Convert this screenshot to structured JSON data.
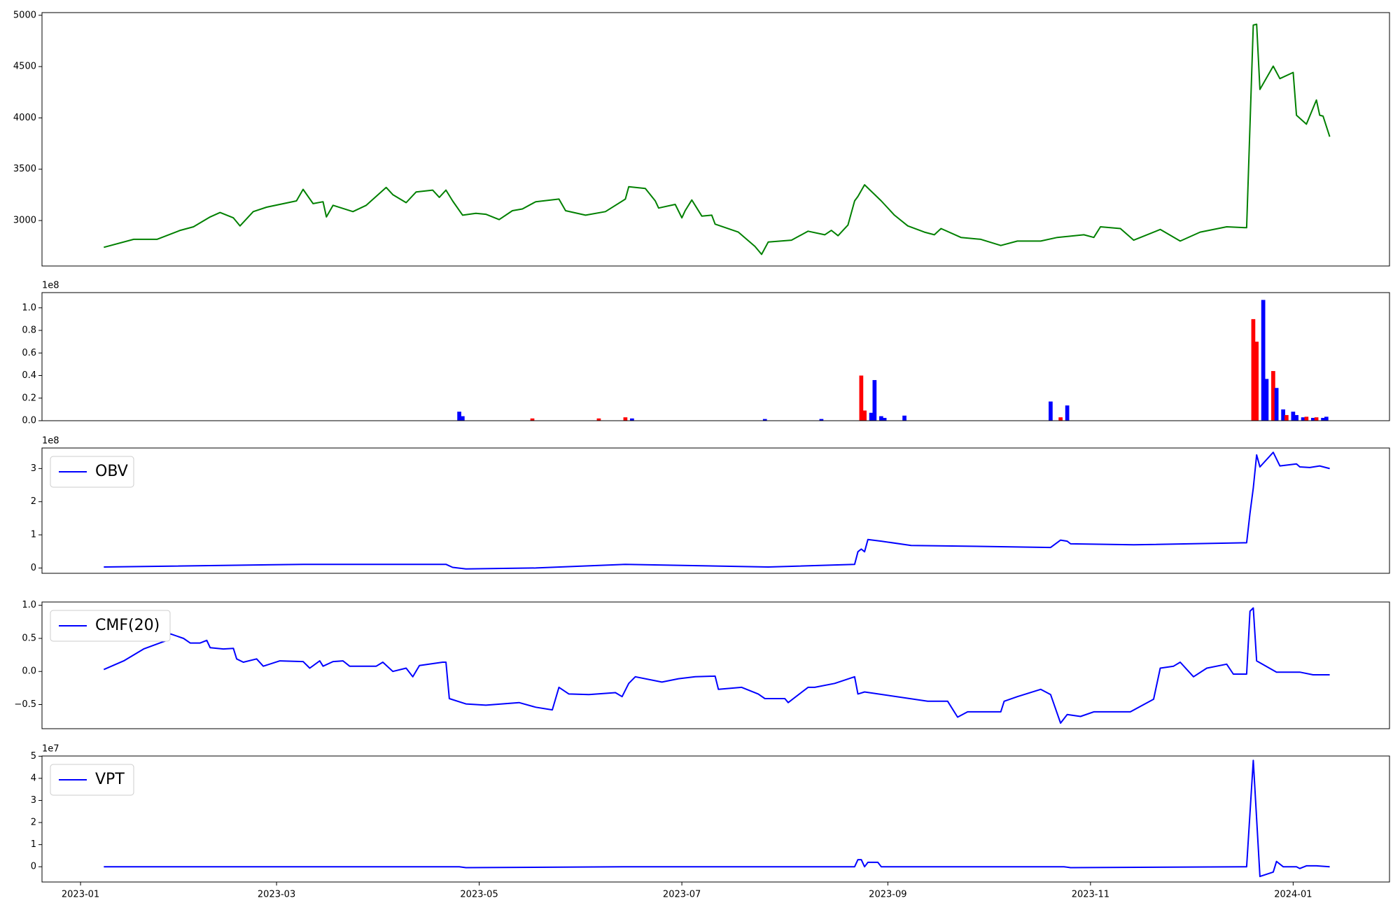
{
  "chart_data": [
    {
      "type": "line",
      "color": "#008000",
      "x": [
        7,
        16,
        23,
        30,
        34,
        39,
        42,
        46,
        48,
        52,
        56,
        65,
        67,
        70,
        73,
        74,
        76,
        82,
        86,
        92,
        94,
        98,
        101,
        106,
        108,
        110,
        112,
        115,
        119,
        122,
        126,
        130,
        133,
        137,
        144,
        146,
        152,
        158,
        164,
        165,
        170,
        173,
        174,
        179,
        181,
        182,
        184,
        187,
        190,
        191,
        198,
        203,
        205,
        207,
        214,
        219,
        224,
        226,
        228,
        231,
        233,
        234,
        236,
        241,
        245,
        249,
        254,
        257,
        259,
        265,
        271,
        277,
        282,
        289,
        294,
        302,
        305,
        307,
        313,
        317,
        325,
        331,
        337,
        345,
        351,
        353,
        354,
        355,
        359,
        361,
        365,
        366,
        369,
        372,
        373,
        374,
        376
      ],
      "values": [
        2739,
        2817,
        2817,
        2904,
        2939,
        3035,
        3078,
        3026,
        2948,
        3087,
        3130,
        3191,
        3304,
        3165,
        3183,
        3035,
        3148,
        3087,
        3148,
        3322,
        3252,
        3174,
        3278,
        3296,
        3226,
        3296,
        3191,
        3052,
        3070,
        3061,
        3009,
        3096,
        3113,
        3183,
        3209,
        3096,
        3052,
        3087,
        3209,
        3330,
        3313,
        3191,
        3122,
        3157,
        3026,
        3096,
        3200,
        3043,
        3052,
        2965,
        2887,
        2748,
        2670,
        2791,
        2809,
        2896,
        2861,
        2904,
        2852,
        2957,
        3191,
        3235,
        3348,
        3191,
        3052,
        2948,
        2887,
        2861,
        2922,
        2835,
        2817,
        2757,
        2800,
        2800,
        2835,
        2861,
        2835,
        2939,
        2922,
        2809,
        2913,
        2800,
        2887,
        2939,
        2930,
        4904,
        4913,
        4278,
        4504,
        4383,
        4443,
        4026,
        3939,
        4174,
        4026,
        4017,
        3817
      ],
      "xlim": [
        -11.6,
        394
      ],
      "ylim": [
        2557,
        5026
      ],
      "yticks": [
        3000,
        3500,
        4000,
        4500,
        5000
      ]
    },
    {
      "type": "bar",
      "y_offset_label": "1e8",
      "x": [
        114,
        115,
        136,
        156,
        164,
        166,
        206,
        223,
        235,
        236,
        238,
        239,
        241,
        242,
        248,
        292,
        295,
        297,
        353,
        354,
        356,
        357,
        359,
        360,
        362,
        363,
        365,
        366,
        368,
        369,
        371,
        372,
        374,
        375
      ],
      "values": [
        8000000,
        4000000,
        2000000,
        2000000,
        3000000,
        2000000,
        1500000,
        1500000,
        40000000,
        9000000,
        7000000,
        36000000,
        4000000,
        2500000,
        4500000,
        17000000,
        3000000,
        13500000,
        90000000,
        70000000,
        107000000,
        37000000,
        44000000,
        29000000,
        10000000,
        5000000,
        8000000,
        5000000,
        3000000,
        3500000,
        2500000,
        3000000,
        2500000,
        3500000
      ],
      "colors": [
        "#0000ff",
        "#0000ff",
        "#ff0000",
        "#ff0000",
        "#ff0000",
        "#0000ff",
        "#0000ff",
        "#0000ff",
        "#ff0000",
        "#ff0000",
        "#0000ff",
        "#0000ff",
        "#0000ff",
        "#0000ff",
        "#0000ff",
        "#0000ff",
        "#ff0000",
        "#0000ff",
        "#ff0000",
        "#ff0000",
        "#0000ff",
        "#0000ff",
        "#ff0000",
        "#0000ff",
        "#0000ff",
        "#ff0000",
        "#0000ff",
        "#0000ff",
        "#0000ff",
        "#ff0000",
        "#0000ff",
        "#ff0000",
        "#0000ff",
        "#0000ff"
      ],
      "bar_width": 1.2,
      "xlim": [
        -11.6,
        394
      ],
      "ylim": [
        0,
        113500000
      ],
      "yticks": [
        {
          "value": 0,
          "label": "0.0"
        },
        {
          "value": 20000000,
          "label": "0.2"
        },
        {
          "value": 40000000,
          "label": "0.4"
        },
        {
          "value": 60000000,
          "label": "0.6"
        },
        {
          "value": 80000000,
          "label": "0.8"
        },
        {
          "value": 100000000,
          "label": "1.0"
        }
      ]
    },
    {
      "type": "line",
      "y_offset_label": "1e8",
      "legend": "upper left",
      "x": [
        7,
        67,
        94,
        110,
        112,
        116,
        137,
        164,
        180,
        207,
        233,
        234,
        235,
        236,
        237,
        241,
        250,
        272,
        292,
        295,
        297,
        298,
        317,
        351,
        352,
        353,
        354,
        355,
        359,
        361,
        366,
        367,
        370,
        373,
        376
      ],
      "series": [
        {
          "name": "OBV",
          "color": "#0000ff",
          "values": [
            3000000,
            11000000,
            11000000,
            11000000,
            2000000,
            -3000000,
            0,
            11000000,
            8000000,
            3000000,
            11000000,
            49000000,
            57000000,
            49000000,
            86000000,
            81000000,
            68000000,
            65000000,
            62000000,
            84000000,
            81000000,
            73000000,
            70000000,
            76000000,
            165000000,
            241000000,
            341000000,
            305000000,
            349000000,
            308000000,
            314000000,
            305000000,
            303000000,
            308000000,
            300000000
          ]
        }
      ],
      "xlim": [
        -11.6,
        394
      ],
      "ylim": [
        -16000000,
        362000000
      ],
      "yticks": [
        0,
        {
          "value": 100000000,
          "label": "1"
        },
        {
          "value": 200000000,
          "label": "2"
        },
        {
          "value": 300000000,
          "label": "3"
        }
      ]
    },
    {
      "type": "line",
      "legend": "upper left",
      "x": [
        7,
        13,
        19,
        26,
        27,
        31,
        33,
        36,
        38,
        39,
        43,
        46,
        47,
        49,
        53,
        55,
        60,
        67,
        69,
        72,
        73,
        76,
        79,
        81,
        89,
        91,
        94,
        98,
        100,
        102,
        109,
        110,
        111,
        116,
        122,
        132,
        137,
        142,
        144,
        147,
        153,
        161,
        163,
        165,
        167,
        175,
        180,
        185,
        191,
        192,
        199,
        204,
        206,
        212,
        213,
        219,
        221,
        227,
        233,
        234,
        236,
        255,
        261,
        264,
        267,
        277,
        278,
        282,
        289,
        292,
        295,
        297,
        301,
        305,
        316,
        323,
        325,
        329,
        331,
        335,
        339,
        345,
        347,
        351,
        352,
        353,
        354,
        360,
        367,
        371,
        376
      ],
      "series": [
        {
          "name": "CMF(20)",
          "color": "#0000ff",
          "values": [
            0.03,
            0.16,
            0.34,
            0.47,
            0.57,
            0.5,
            0.43,
            0.43,
            0.47,
            0.36,
            0.34,
            0.35,
            0.19,
            0.14,
            0.19,
            0.08,
            0.16,
            0.15,
            0.05,
            0.16,
            0.08,
            0.15,
            0.16,
            0.08,
            0.08,
            0.14,
            0.0,
            0.05,
            -0.08,
            0.09,
            0.14,
            0.14,
            -0.41,
            -0.49,
            -0.51,
            -0.47,
            -0.54,
            -0.58,
            -0.24,
            -0.34,
            -0.35,
            -0.32,
            -0.38,
            -0.18,
            -0.08,
            -0.16,
            -0.11,
            -0.08,
            -0.07,
            -0.27,
            -0.24,
            -0.34,
            -0.41,
            -0.41,
            -0.47,
            -0.24,
            -0.24,
            -0.18,
            -0.08,
            -0.34,
            -0.31,
            -0.45,
            -0.45,
            -0.69,
            -0.61,
            -0.61,
            -0.45,
            -0.38,
            -0.27,
            -0.35,
            -0.78,
            -0.65,
            -0.68,
            -0.61,
            -0.61,
            -0.42,
            0.05,
            0.08,
            0.14,
            -0.08,
            0.05,
            0.11,
            -0.04,
            -0.04,
            0.91,
            0.96,
            0.16,
            -0.01,
            -0.01,
            -0.05,
            -0.05
          ]
        }
      ],
      "xlim": [
        -11.6,
        394
      ],
      "ylim": [
        -0.865,
        1.05
      ],
      "yticks": [
        {
          "value": -0.5,
          "label": "−0.5"
        },
        {
          "value": 0,
          "label": "0.0"
        },
        {
          "value": 0.5,
          "label": "0.5"
        },
        {
          "value": 1,
          "label": "1.0"
        }
      ]
    },
    {
      "type": "line",
      "y_offset_label": "1e7",
      "legend": "upper left",
      "x": [
        7,
        114,
        116,
        164,
        233,
        234,
        235,
        236,
        237,
        240,
        241,
        296,
        298,
        351,
        353,
        355,
        359,
        360,
        362,
        366,
        367,
        369,
        372,
        376
      ],
      "series": [
        {
          "name": "VPT",
          "color": "#0000ff",
          "values": [
            0,
            0,
            -400000,
            0,
            0,
            3200000,
            3200000,
            0,
            2000000,
            2000000,
            0,
            0,
            -400000,
            0,
            48100000,
            -4400000,
            -2400000,
            2400000,
            0,
            0,
            -800000,
            400000,
            400000,
            0
          ]
        }
      ],
      "xlim": [
        -11.6,
        394
      ],
      "ylim": [
        -6900000,
        50100000
      ],
      "yticks": [
        0,
        {
          "value": 10000000,
          "label": "1"
        },
        {
          "value": 20000000,
          "label": "2"
        },
        {
          "value": 30000000,
          "label": "3"
        },
        {
          "value": 40000000,
          "label": "4"
        },
        {
          "value": 50000000,
          "label": "5"
        }
      ],
      "xticks": [
        {
          "value": 0,
          "label": "2023-01"
        },
        {
          "value": 59,
          "label": "2023-03"
        },
        {
          "value": 120,
          "label": "2023-05"
        },
        {
          "value": 181,
          "label": "2023-07"
        },
        {
          "value": 243,
          "label": "2023-09"
        },
        {
          "value": 304,
          "label": "2023-11"
        },
        {
          "value": 365,
          "label": "2024-01"
        }
      ]
    }
  ]
}
